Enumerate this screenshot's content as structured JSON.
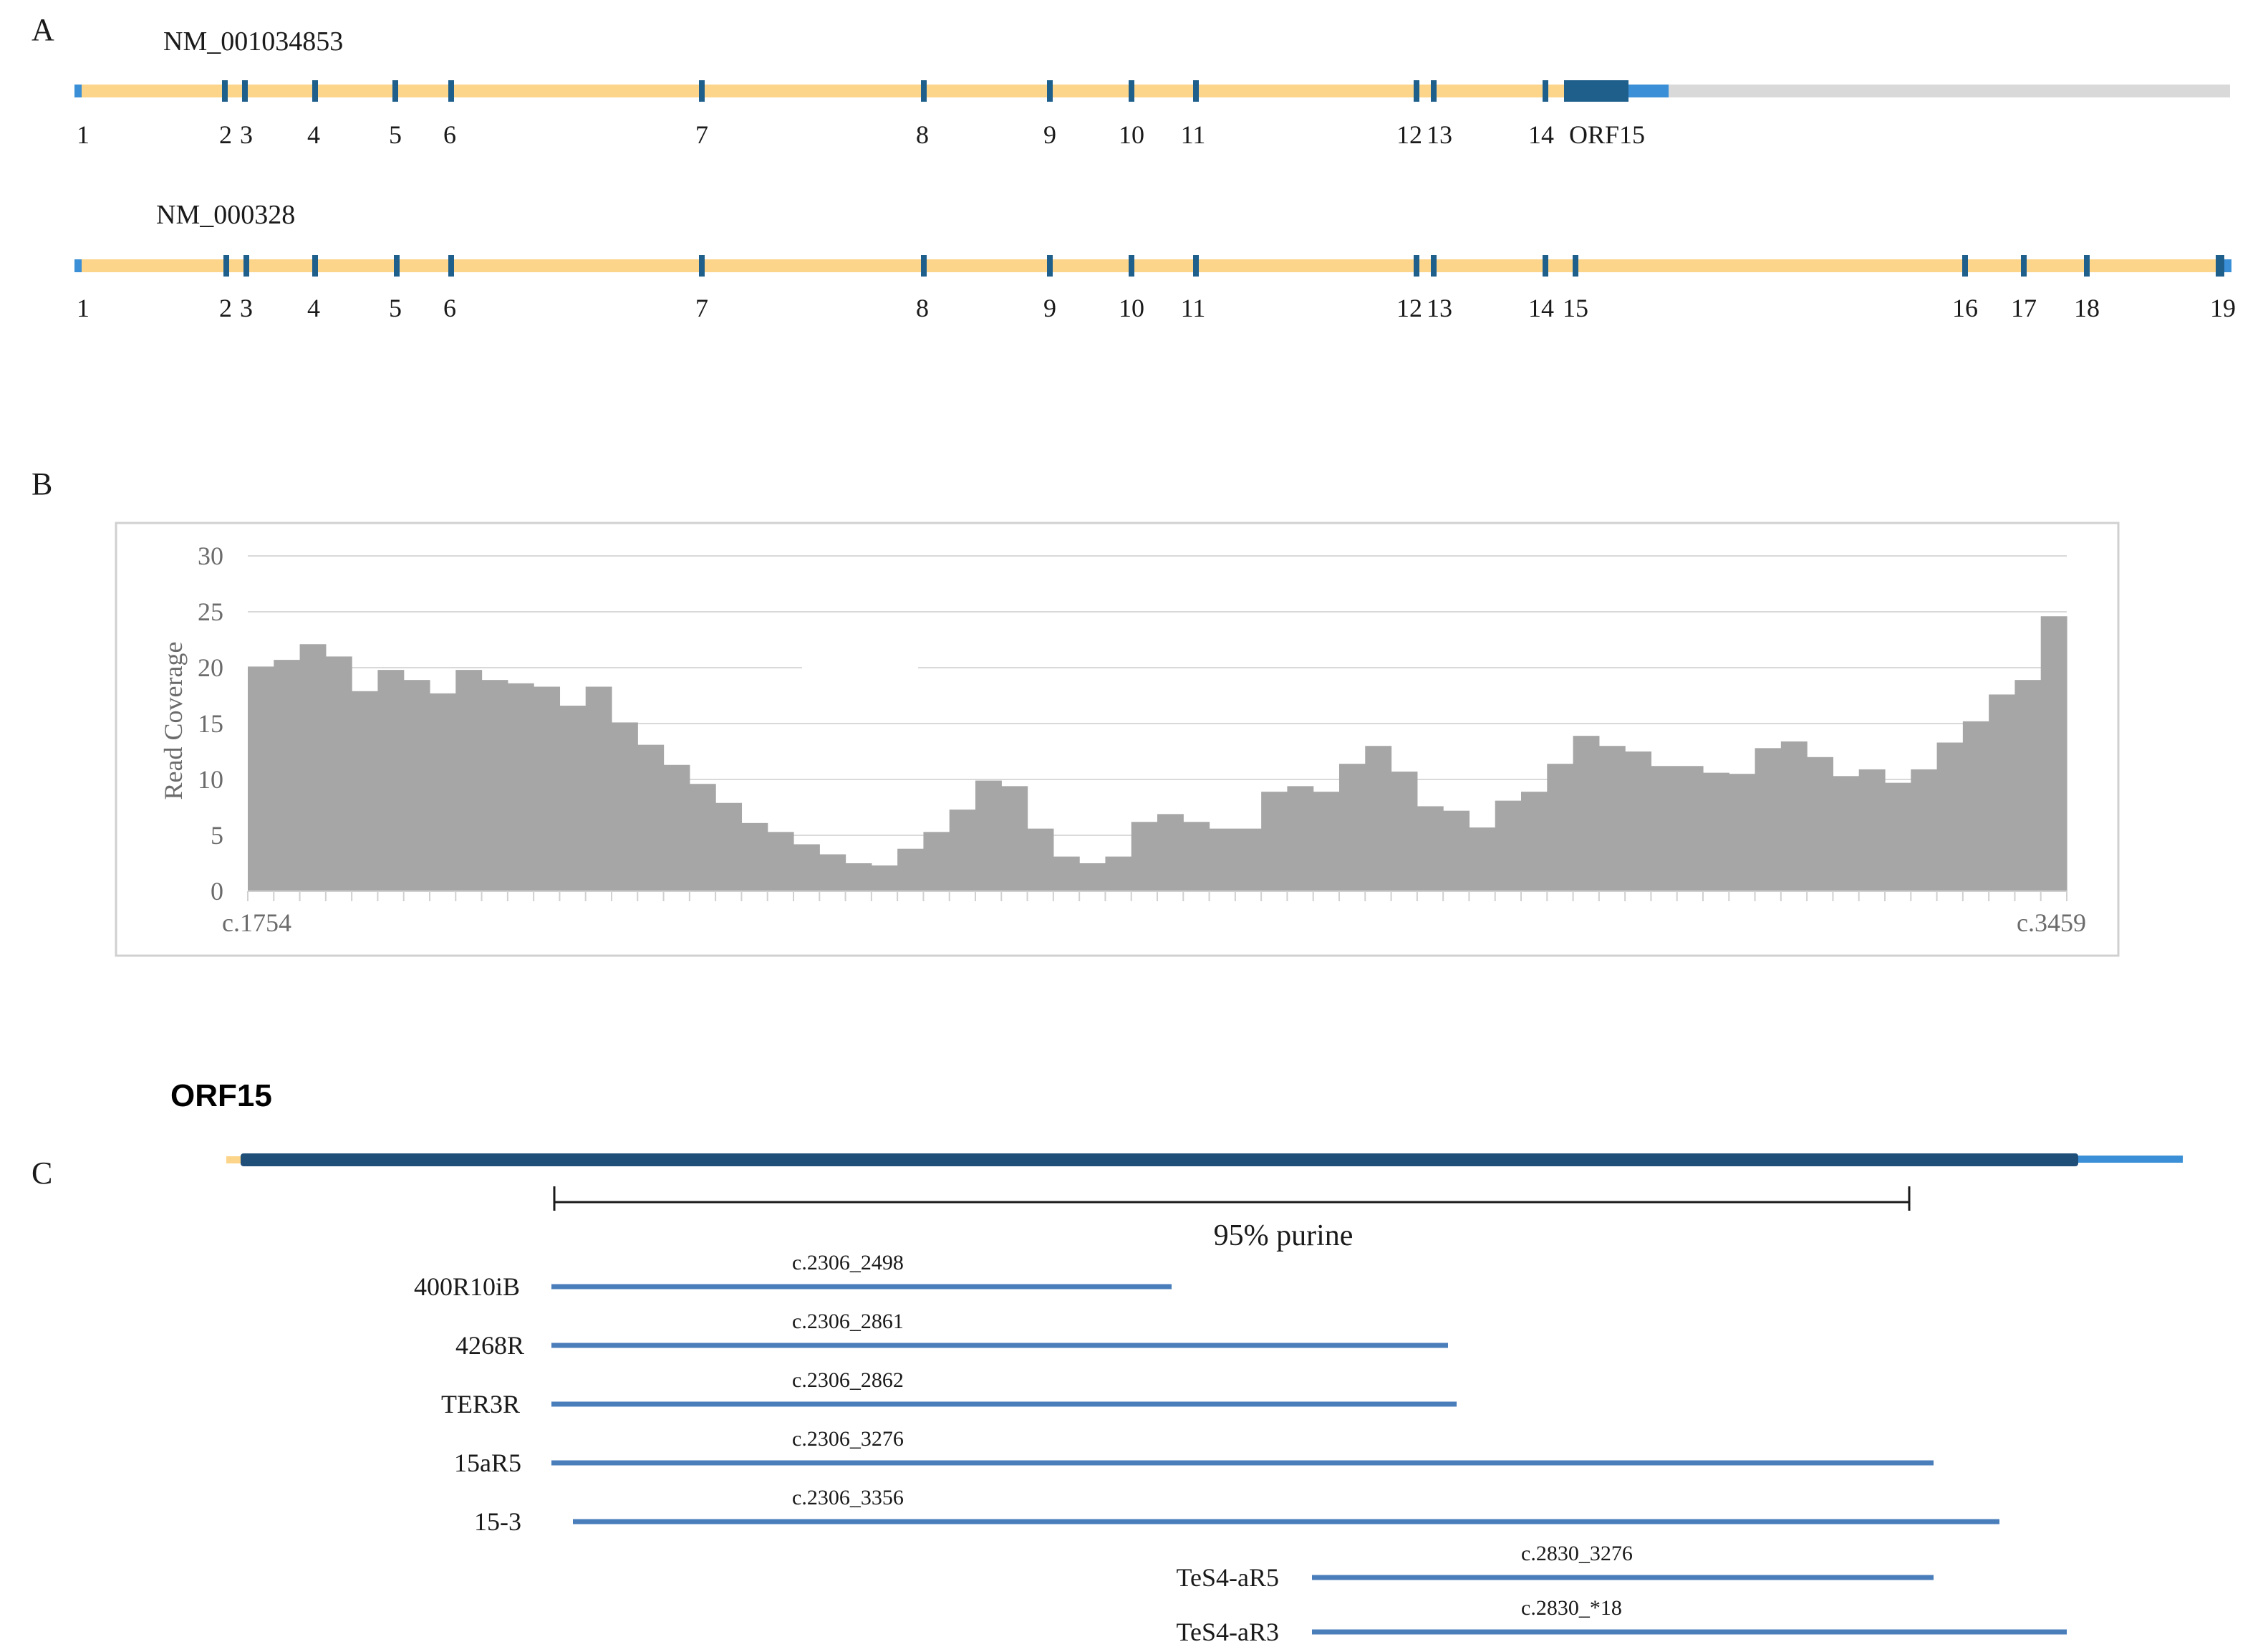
{
  "panel_a": {
    "letter": "A",
    "transcripts": [
      {
        "name": "NM_001034853",
        "exons": [
          "1",
          "2",
          "3",
          "4",
          "5",
          "6",
          "7",
          "8",
          "9",
          "10",
          "11",
          "12",
          "13",
          "14",
          "ORF15"
        ]
      },
      {
        "name": "NM_000328",
        "exons": [
          "1",
          "2",
          "3",
          "4",
          "5",
          "6",
          "7",
          "8",
          "9",
          "10",
          "11",
          "12",
          "13",
          "14",
          "15",
          "16",
          "17",
          "18",
          "19"
        ]
      }
    ],
    "colors": {
      "intron": "#fcd58a",
      "exon": "#1f5f8b",
      "utr": "#3a8fd6",
      "downstream": "#d9d9d9"
    }
  },
  "panel_b": {
    "letter": "B",
    "chart_data": {
      "type": "bar",
      "ylabel": "Read Coverage",
      "ylim": [
        0,
        30
      ],
      "yticks": [
        "0",
        "5",
        "10",
        "15",
        "20",
        "25",
        "30"
      ],
      "x_start_label": "c.1754",
      "x_end_label": "c.3459",
      "bar_color": "#a6a6a6",
      "grid": true,
      "values": [
        20.1,
        20.7,
        22.1,
        21.0,
        17.9,
        19.8,
        18.9,
        17.7,
        19.8,
        18.9,
        18.6,
        18.3,
        16.6,
        18.3,
        15.1,
        13.1,
        11.3,
        9.6,
        7.9,
        6.1,
        5.3,
        4.2,
        3.3,
        2.5,
        2.3,
        3.8,
        5.3,
        7.3,
        9.9,
        9.4,
        5.6,
        3.1,
        2.5,
        3.1,
        6.2,
        6.9,
        6.2,
        5.6,
        5.6,
        8.9,
        9.4,
        8.9,
        11.4,
        13.0,
        10.7,
        7.6,
        7.2,
        5.7,
        8.1,
        8.9,
        11.4,
        13.9,
        13.0,
        12.5,
        11.2,
        11.2,
        10.6,
        10.5,
        12.8,
        13.4,
        12.0,
        10.3,
        10.9,
        9.7,
        10.9,
        13.3,
        15.2,
        17.6,
        18.9,
        24.6
      ]
    }
  },
  "panel_c": {
    "letter": "C",
    "title": "ORF15",
    "region_label": "95% purine",
    "colors": {
      "orf": "#1f4e79",
      "utr": "#3a8fd6",
      "primer": "#4a7ebb"
    },
    "primers": [
      {
        "name": "400R10iB",
        "range": "c.2306_2498"
      },
      {
        "name": "4268R",
        "range": "c.2306_2861"
      },
      {
        "name": "TER3R",
        "range": "c.2306_2862"
      },
      {
        "name": "15aR5",
        "range": "c.2306_3276"
      },
      {
        "name": "15-3",
        "range": "c.2306_3356"
      },
      {
        "name": "TeS4-aR5",
        "range": "c.2830_3276"
      },
      {
        "name": "TeS4-aR3",
        "range": "c.2830_*18"
      }
    ]
  }
}
